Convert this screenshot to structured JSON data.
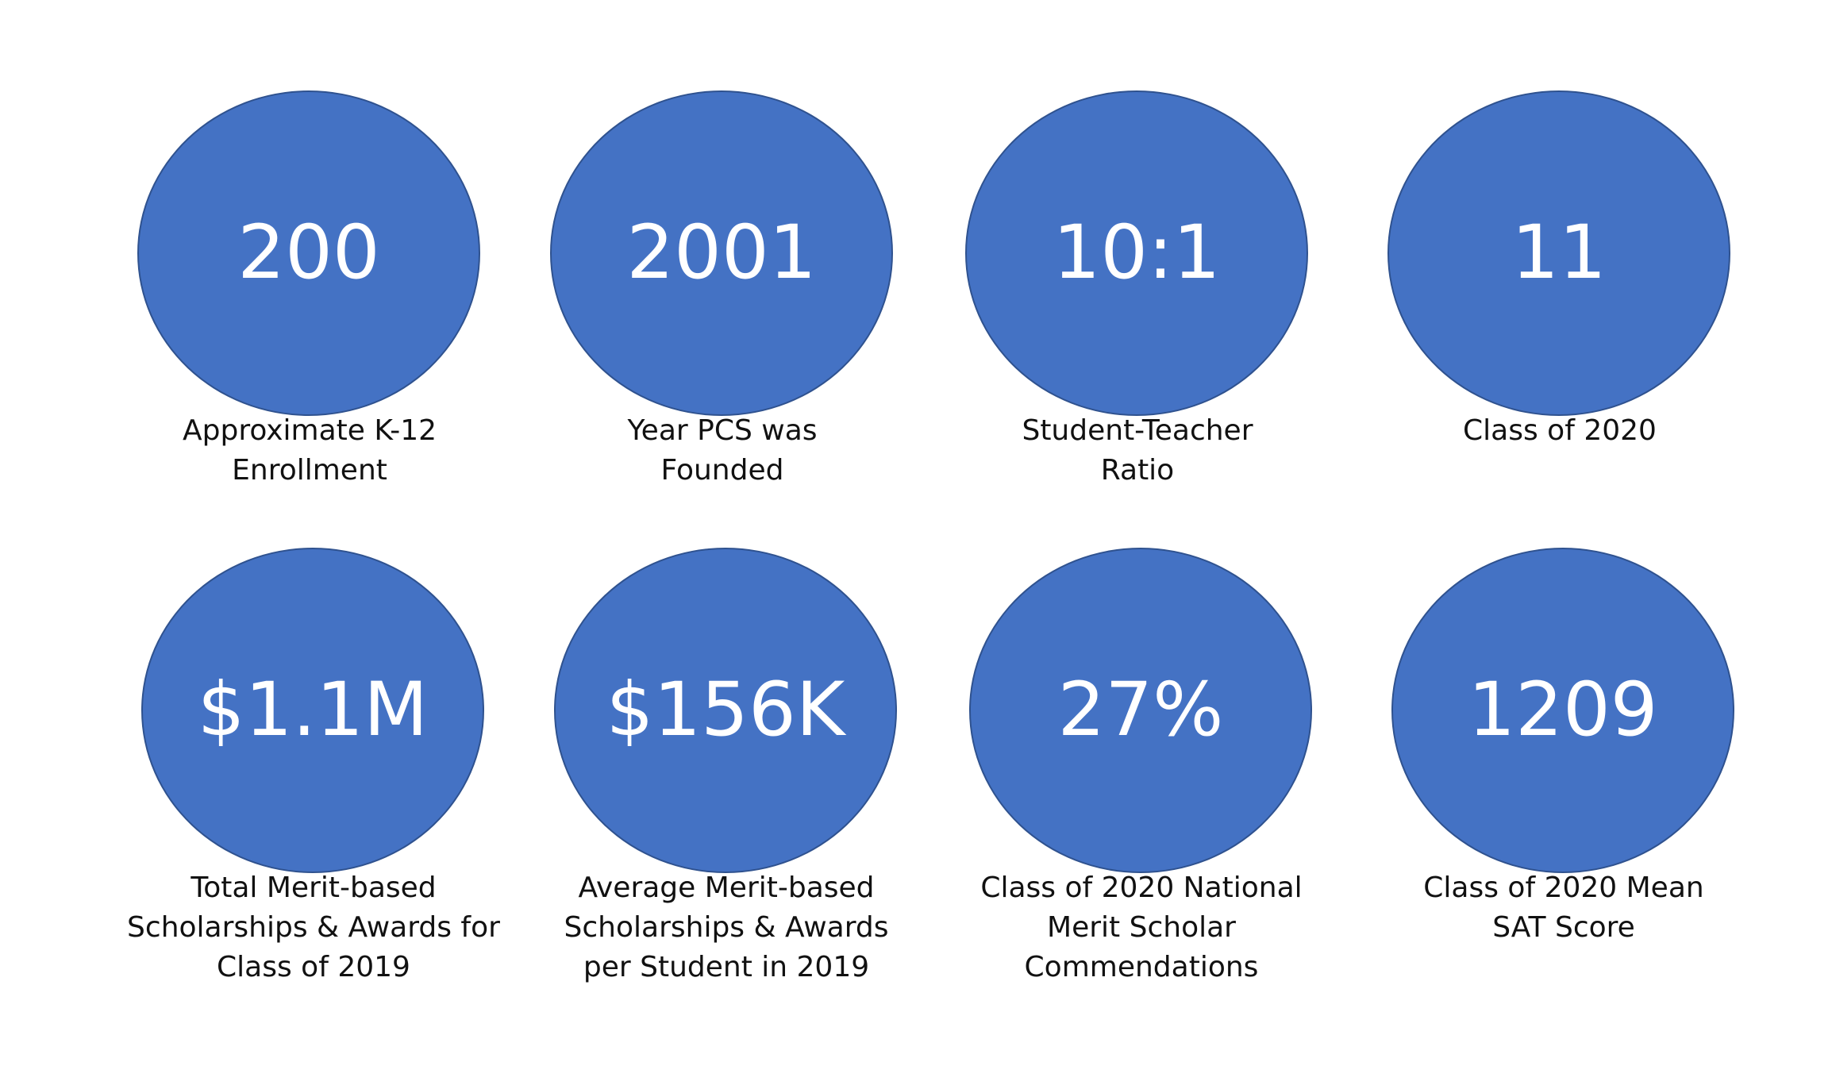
{
  "colors": {
    "circle_fill": "#4472C4",
    "circle_border": "#2F528F",
    "value_text": "#FFFFFF",
    "caption_text": "#111111",
    "background": "#FFFFFF"
  },
  "stats": [
    {
      "value": "200",
      "caption": [
        "Approximate K-12",
        "Enrollment"
      ]
    },
    {
      "value": "2001",
      "caption": [
        "Year PCS was",
        "Founded"
      ]
    },
    {
      "value": "10:1",
      "caption": [
        "Student-Teacher",
        "Ratio"
      ]
    },
    {
      "value": "11",
      "caption": [
        "Class of 2020"
      ]
    },
    {
      "value": "$1.1M",
      "caption": [
        "Total Merit-based",
        "Scholarships & Awards for",
        "Class of 2019"
      ]
    },
    {
      "value": "$156K",
      "caption": [
        "Average Merit-based",
        "Scholarships & Awards",
        "per Student in 2019"
      ]
    },
    {
      "value": "27%",
      "caption": [
        "Class of 2020 National",
        "Merit Scholar",
        "Commendations"
      ]
    },
    {
      "value": "1209",
      "caption": [
        "Class of 2020 Mean",
        "SAT Score"
      ]
    }
  ]
}
